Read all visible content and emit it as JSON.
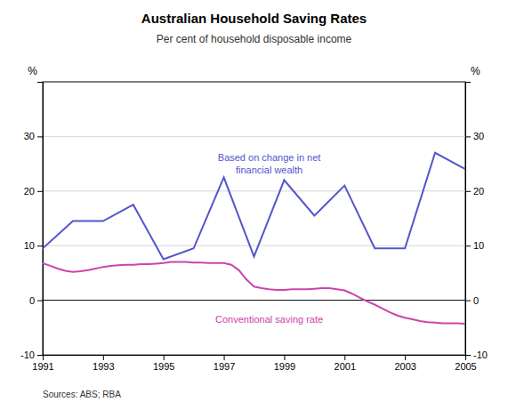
{
  "chart_data": {
    "type": "line",
    "title": "Australian Household Saving Rates",
    "subtitle": "Per cent of household disposable income",
    "source": "Sources: ABS; RBA",
    "ylabel": "%",
    "y2label": "%",
    "xlim": [
      1991,
      2005
    ],
    "xticks": [
      1991,
      1993,
      1995,
      1997,
      1999,
      2001,
      2003,
      2005
    ],
    "ylim": [
      -10,
      40
    ],
    "yticks": [
      -10,
      0,
      10,
      20,
      30
    ],
    "y2lim": [
      -10,
      40
    ],
    "y2ticks": [
      -10,
      0,
      10,
      20,
      30
    ],
    "grid": true,
    "series": [
      {
        "name": "Based on change in net\nfinancial wealth",
        "color": "#5555cc",
        "x": [
          1991,
          1992,
          1993,
          1994,
          1995,
          1996,
          1997,
          1998,
          1999,
          2000,
          2001,
          2002,
          2003,
          2004,
          2005
        ],
        "values": [
          9.5,
          14.5,
          14.5,
          17.5,
          7.5,
          9.5,
          22.5,
          8.0,
          22.0,
          15.5,
          21.0,
          9.5,
          9.5,
          27.0,
          24.0
        ]
      },
      {
        "name": "Conventional saving rate",
        "color": "#cc44aa",
        "x": [
          1991,
          1991.25,
          1991.5,
          1991.75,
          1992,
          1992.25,
          1992.5,
          1992.75,
          1993,
          1993.25,
          1993.5,
          1993.75,
          1994,
          1994.25,
          1994.5,
          1994.75,
          1995,
          1995.25,
          1995.5,
          1995.75,
          1996,
          1996.25,
          1996.5,
          1996.75,
          1997,
          1997.25,
          1997.5,
          1997.75,
          1998,
          1998.25,
          1998.5,
          1998.75,
          1999,
          1999.25,
          1999.5,
          1999.75,
          2000,
          2000.25,
          2000.5,
          2000.75,
          2001,
          2001.25,
          2001.5,
          2001.75,
          2002,
          2002.25,
          2002.5,
          2002.75,
          2003,
          2003.25,
          2003.5,
          2003.75,
          2004,
          2004.25,
          2004.5,
          2004.75,
          2005
        ],
        "values": [
          6.8,
          6.3,
          5.8,
          5.4,
          5.2,
          5.3,
          5.5,
          5.8,
          6.1,
          6.3,
          6.4,
          6.5,
          6.5,
          6.6,
          6.6,
          6.7,
          6.8,
          7.0,
          7.0,
          7.0,
          6.9,
          6.9,
          6.8,
          6.8,
          6.8,
          6.5,
          5.5,
          3.8,
          2.5,
          2.2,
          2.0,
          1.9,
          1.9,
          2.0,
          2.0,
          2.0,
          2.1,
          2.2,
          2.2,
          2.0,
          1.8,
          1.2,
          0.5,
          -0.2,
          -0.8,
          -1.5,
          -2.2,
          -2.8,
          -3.2,
          -3.5,
          -3.8,
          -4.0,
          -4.1,
          -4.2,
          -4.2,
          -4.2,
          -4.3
        ]
      }
    ]
  }
}
